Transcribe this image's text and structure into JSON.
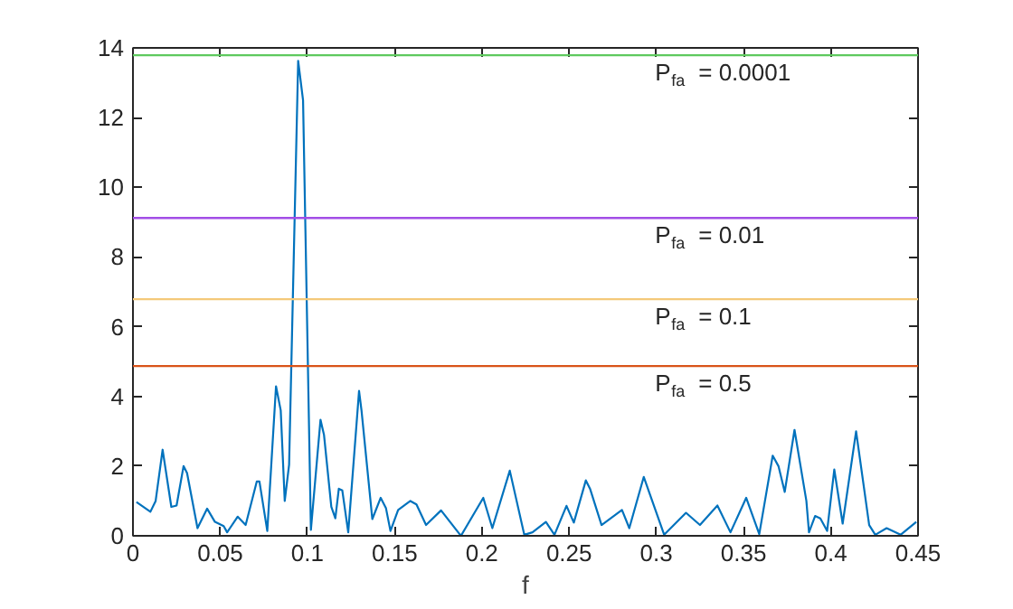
{
  "chart_data": {
    "type": "line",
    "xlabel": "f",
    "xlim": [
      0,
      0.45
    ],
    "ylim": [
      0,
      14
    ],
    "xticks": [
      0,
      0.05,
      0.1,
      0.15,
      0.2,
      0.25,
      0.3,
      0.35,
      0.4,
      0.45
    ],
    "yticks": [
      0,
      2,
      4,
      6,
      8,
      10,
      12,
      14
    ],
    "grid": false,
    "series": [
      {
        "color": "#0072bd",
        "x": [
          0.002,
          0.01,
          0.013,
          0.017,
          0.022,
          0.025,
          0.029,
          0.031,
          0.037,
          0.0425,
          0.047,
          0.052,
          0.054,
          0.06,
          0.0646,
          0.071,
          0.0725,
          0.077,
          0.082,
          0.0847,
          0.087,
          0.0895,
          0.0947,
          0.0975,
          0.102,
          0.1075,
          0.1095,
          0.1137,
          0.116,
          0.118,
          0.12,
          0.1234,
          0.1296,
          0.131,
          0.1372,
          0.142,
          0.145,
          0.1476,
          0.152,
          0.159,
          0.1625,
          0.168,
          0.1766,
          0.188,
          0.2008,
          0.206,
          0.216,
          0.2243,
          0.229,
          0.2367,
          0.2416,
          0.2485,
          0.2527,
          0.2596,
          0.262,
          0.2686,
          0.2803,
          0.2845,
          0.2928,
          0.3045,
          0.317,
          0.325,
          0.335,
          0.3425,
          0.3515,
          0.359,
          0.3667,
          0.37,
          0.3736,
          0.3792,
          0.386,
          0.3875,
          0.391,
          0.394,
          0.3979,
          0.402,
          0.4068,
          0.4145,
          0.422,
          0.4255,
          0.432,
          0.44,
          0.449
        ],
        "values": [
          0.97,
          0.69,
          1.0,
          2.47,
          0.83,
          0.87,
          2.0,
          1.8,
          0.22,
          0.78,
          0.4,
          0.28,
          0.1,
          0.55,
          0.31,
          1.56,
          1.56,
          0.14,
          4.29,
          3.6,
          1.0,
          2.04,
          13.63,
          12.5,
          0.17,
          3.33,
          2.9,
          0.83,
          0.5,
          1.35,
          1.3,
          0.1,
          4.16,
          3.6,
          0.48,
          1.09,
          0.8,
          0.14,
          0.74,
          1.0,
          0.9,
          0.31,
          0.73,
          0.0,
          1.09,
          0.22,
          1.87,
          0.03,
          0.1,
          0.4,
          0.03,
          0.86,
          0.38,
          1.59,
          1.35,
          0.31,
          0.74,
          0.22,
          1.69,
          0.03,
          0.66,
          0.31,
          0.87,
          0.1,
          1.09,
          0.05,
          2.3,
          2.0,
          1.26,
          3.04,
          1.0,
          0.1,
          0.57,
          0.5,
          0.14,
          1.9,
          0.35,
          3.0,
          0.31,
          0.03,
          0.22,
          0.03,
          0.4
        ]
      }
    ],
    "ref_lines": [
      {
        "axis": "y",
        "value": 13.79,
        "color": "#5ec95e"
      },
      {
        "axis": "y",
        "value": 9.12,
        "color": "#a24ee6"
      },
      {
        "axis": "y",
        "value": 6.79,
        "color": "#f4c97a"
      },
      {
        "axis": "y",
        "value": 4.87,
        "color": "#d95319"
      }
    ],
    "annotations": [
      {
        "text": "P$_{fa}$ =  0.0001",
        "y": 13.79
      },
      {
        "text": "P$_{fa}$ =  0.01",
        "y": 9.12
      },
      {
        "text": "P$_{fa}$ =  0.1",
        "y": 6.79
      },
      {
        "text": "P$_{fa}$ =  0.5",
        "y": 4.87
      }
    ]
  }
}
